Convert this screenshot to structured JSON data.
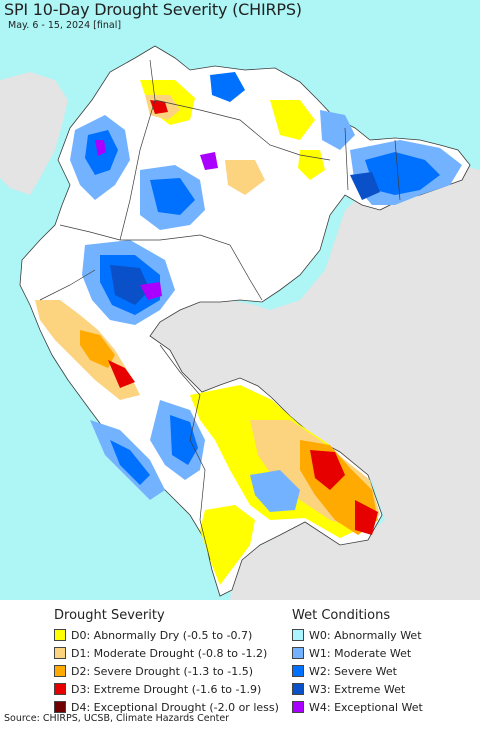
{
  "title": "SPI 10-Day Drought Severity (CHIRPS)",
  "subtitle": "May. 6 - 15, 2024 [final]",
  "colors": {
    "ocean": "#aef5f5",
    "land_outside": "#e4e4e4",
    "land_normal": "#ffffff",
    "border": "#3c3c3c"
  },
  "legend": {
    "drought": {
      "title": "Drought Severity",
      "items": [
        {
          "label": "D0: Abnormally Dry (-0.5 to -0.7)",
          "color": "#ffff00"
        },
        {
          "label": "D1: Moderate Drought (-0.8 to -1.2)",
          "color": "#fcd37f"
        },
        {
          "label": "D2: Severe Drought (-1.3 to -1.5)",
          "color": "#ffaa00"
        },
        {
          "label": "D3: Extreme Drought (-1.6 to -1.9)",
          "color": "#e60000"
        },
        {
          "label": "D4: Exceptional Drought (-2.0 or less)",
          "color": "#730000"
        }
      ]
    },
    "wet": {
      "title": "Wet Conditions",
      "items": [
        {
          "label": "W0: Abnormally Wet",
          "color": "#aaf5ff"
        },
        {
          "label": "W1: Moderate Wet",
          "color": "#73b2ff"
        },
        {
          "label": "W2: Severe Wet",
          "color": "#0070ff"
        },
        {
          "label": "W3: Extreme Wet",
          "color": "#0a50c8"
        },
        {
          "label": "W4: Exceptional Wet",
          "color": "#aa00ff"
        }
      ]
    }
  },
  "source": "Source: CHIRPS, UCSB, Climate Hazards Center"
}
